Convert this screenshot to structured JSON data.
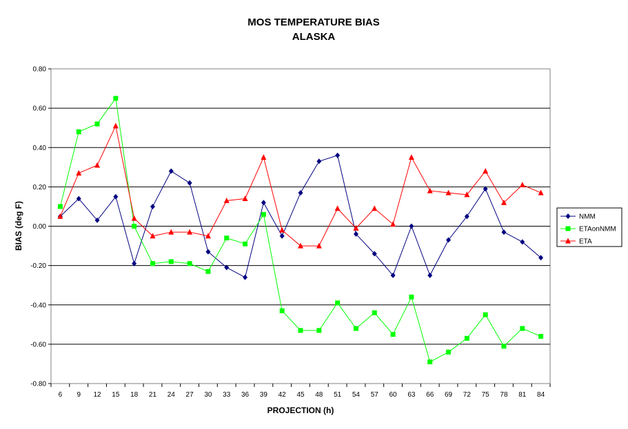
{
  "chart_data": {
    "type": "line",
    "title": "MOS TEMPERATURE BIAS",
    "subtitle": "ALASKA",
    "xlabel": "PROJECTION (h)",
    "ylabel": "BIAS (deg F)",
    "ylim": [
      -0.8,
      0.8
    ],
    "y_ticks": [
      "0.80",
      "0.60",
      "0.40",
      "0.20",
      "0.00",
      "-0.20",
      "-0.40",
      "-0.60",
      "-0.80"
    ],
    "categories": [
      "6",
      "9",
      "12",
      "15",
      "18",
      "21",
      "24",
      "27",
      "30",
      "33",
      "36",
      "39",
      "42",
      "45",
      "48",
      "51",
      "54",
      "57",
      "60",
      "63",
      "66",
      "69",
      "72",
      "75",
      "78",
      "81",
      "84"
    ],
    "grid": true,
    "legend_position": "right",
    "series": [
      {
        "name": "NMM",
        "color": "#000080",
        "marker": "diamond",
        "values": [
          0.05,
          0.14,
          0.03,
          0.15,
          -0.19,
          0.1,
          0.28,
          0.22,
          -0.13,
          -0.21,
          -0.26,
          0.12,
          -0.05,
          0.17,
          0.33,
          0.36,
          -0.04,
          -0.14,
          -0.25,
          0.0,
          -0.25,
          -0.07,
          0.05,
          0.19,
          -0.03,
          -0.08,
          -0.16
        ]
      },
      {
        "name": "ETAonNMM",
        "color": "#00ff00",
        "marker": "square",
        "values": [
          0.1,
          0.48,
          0.52,
          0.65,
          0.0,
          -0.19,
          -0.18,
          -0.19,
          -0.23,
          -0.06,
          -0.09,
          0.06,
          -0.43,
          -0.53,
          -0.53,
          -0.39,
          -0.52,
          -0.44,
          -0.55,
          -0.36,
          -0.69,
          -0.64,
          -0.57,
          -0.45,
          -0.61,
          -0.52,
          -0.56
        ]
      },
      {
        "name": "ETA",
        "color": "#ff0000",
        "marker": "triangle",
        "values": [
          0.05,
          0.27,
          0.31,
          0.51,
          0.04,
          -0.05,
          -0.03,
          -0.03,
          -0.05,
          0.13,
          0.14,
          0.35,
          -0.02,
          -0.1,
          -0.1,
          0.09,
          -0.01,
          0.09,
          0.01,
          0.35,
          0.18,
          0.17,
          0.16,
          0.28,
          0.12,
          0.21,
          0.17
        ]
      }
    ]
  }
}
